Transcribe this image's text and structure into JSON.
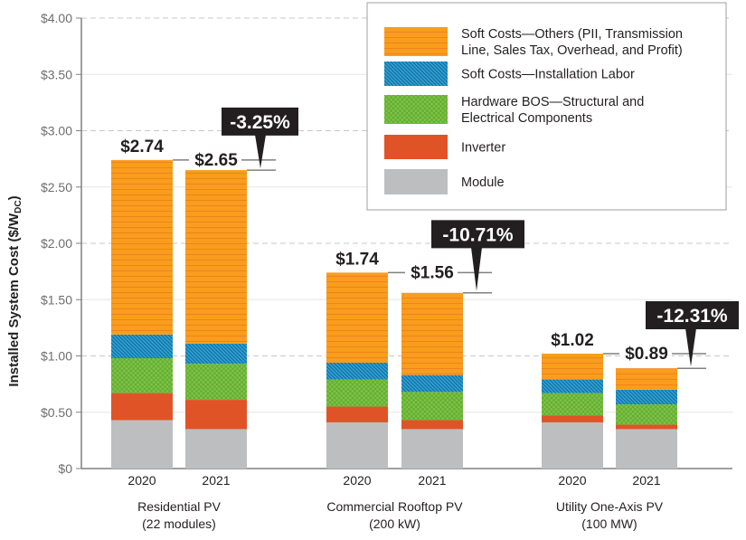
{
  "chart_data": {
    "type": "bar",
    "stacked": true,
    "ylabel": "Installed System Cost ($/W",
    "ylabel_sub": "DC",
    "ylabel_close": ")",
    "ylim": [
      0,
      4.0
    ],
    "yticks": [
      "$0",
      "$0.50",
      "$1.00",
      "$1.50",
      "$2.00",
      "$2.50",
      "$3.00",
      "$3.50",
      "$4.00"
    ],
    "grid": true,
    "legend_position": "top-right",
    "groups": [
      {
        "label_line1": "Residential PV",
        "label_line2": "(22 modules)",
        "change": "-3.25%",
        "bars": [
          {
            "year": "2020",
            "total_label": "$2.74",
            "total": 2.74,
            "values": [
              0.43,
              0.24,
              0.31,
              0.21,
              1.55
            ]
          },
          {
            "year": "2021",
            "total_label": "$2.65",
            "total": 2.65,
            "values": [
              0.35,
              0.26,
              0.32,
              0.18,
              1.54
            ]
          }
        ]
      },
      {
        "label_line1": "Commercial Rooftop PV",
        "label_line2": "(200 kW)",
        "change": "-10.71%",
        "bars": [
          {
            "year": "2020",
            "total_label": "$1.74",
            "total": 1.74,
            "values": [
              0.41,
              0.14,
              0.24,
              0.15,
              0.8
            ]
          },
          {
            "year": "2021",
            "total_label": "$1.56",
            "total": 1.56,
            "values": [
              0.35,
              0.08,
              0.25,
              0.15,
              0.73
            ]
          }
        ]
      },
      {
        "label_line1": "Utility One-Axis PV",
        "label_line2": "(100 MW)",
        "change": "-12.31%",
        "bars": [
          {
            "year": "2020",
            "total_label": "$1.02",
            "total": 1.02,
            "values": [
              0.41,
              0.06,
              0.2,
              0.12,
              0.23
            ]
          },
          {
            "year": "2021",
            "total_label": "$0.89",
            "total": 0.89,
            "values": [
              0.35,
              0.04,
              0.18,
              0.13,
              0.19
            ]
          }
        ]
      }
    ],
    "series": [
      {
        "name": "Module",
        "color": "#bcbec0"
      },
      {
        "name": "Inverter",
        "color": "#e05327"
      },
      {
        "name_line1": "Hardware BOS—Structural and",
        "name_line2": "Electrical Components",
        "color": "#7dc242"
      },
      {
        "name": "Soft Costs—Installation Labor",
        "color": "#27a0d8"
      },
      {
        "name_line1": "Soft Costs—Others (PII, Transmission",
        "name_line2": "Line, Sales Tax, Overhead, and Profit)",
        "color": "#f99d1c"
      }
    ]
  }
}
